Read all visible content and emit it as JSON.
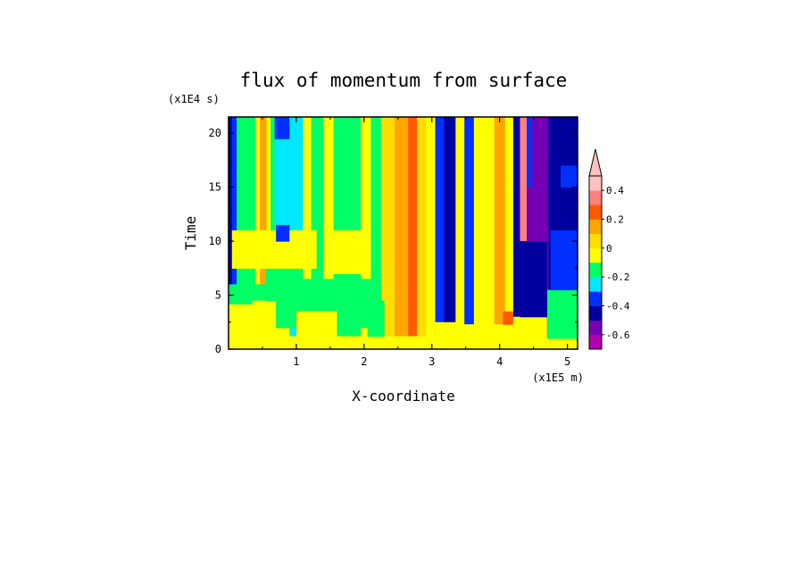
{
  "chart_data": {
    "type": "heatmap",
    "title": "flux of momentum from surface",
    "xlabel": "X-coordinate",
    "ylabel": "Time",
    "x_unit": "(x1E5 m)",
    "y_unit": "(x1E4 s)",
    "xlim": [
      0,
      5.15
    ],
    "ylim": [
      0,
      21.5
    ],
    "x_ticks": [
      "1",
      "2",
      "3",
      "4",
      "5"
    ],
    "y_ticks": [
      "0",
      "5",
      "10",
      "15",
      "20"
    ],
    "grid": false,
    "colorbar": {
      "position": "right",
      "tick_labels": [
        "-0.6",
        "-0.4",
        "-0.2",
        "0",
        "0.2",
        "0.4"
      ],
      "levels": [
        -0.6,
        -0.5,
        -0.4,
        -0.3,
        -0.2,
        -0.1,
        0,
        0.1,
        0.2,
        0.3,
        0.4,
        0.5
      ],
      "colors": [
        "#b300b3",
        "#7300b4",
        "#00009e",
        "#0030ff",
        "#00e8ff",
        "#00ff64",
        "#ffff00",
        "#ffdd00",
        "#ffa500",
        "#ff5a00",
        "#ff8080",
        "#ffc0c0"
      ],
      "extend_max": true
    },
    "columns": [
      {
        "x0": 0.0,
        "x1": 0.05,
        "value": -0.35
      },
      {
        "x0": 0.05,
        "x1": 0.12,
        "value": -0.25
      },
      {
        "x0": 0.12,
        "x1": 0.4,
        "value": -0.05
      },
      {
        "x0": 0.4,
        "x1": 0.46,
        "value": 0.05
      },
      {
        "x0": 0.46,
        "x1": 0.56,
        "value": 0.25
      },
      {
        "x0": 0.56,
        "x1": 0.62,
        "value": 0.05
      },
      {
        "x0": 0.62,
        "x1": 0.68,
        "value": -0.05
      },
      {
        "x0": 0.68,
        "x1": 0.98,
        "value": -0.15
      },
      {
        "x0": 0.98,
        "x1": 1.1,
        "value": -0.15
      },
      {
        "x0": 1.1,
        "x1": 1.22,
        "value": 0.05
      },
      {
        "x0": 1.22,
        "x1": 1.4,
        "value": -0.05
      },
      {
        "x0": 1.4,
        "x1": 1.55,
        "value": 0.05
      },
      {
        "x0": 1.55,
        "x1": 1.8,
        "value": -0.05
      },
      {
        "x0": 1.8,
        "x1": 1.95,
        "value": -0.05
      },
      {
        "x0": 1.95,
        "x1": 2.1,
        "value": 0.05
      },
      {
        "x0": 2.1,
        "x1": 2.25,
        "value": -0.05
      },
      {
        "x0": 2.25,
        "x1": 2.45,
        "value": 0.15
      },
      {
        "x0": 2.45,
        "x1": 2.65,
        "value": 0.25
      },
      {
        "x0": 2.65,
        "x1": 2.78,
        "value": 0.35
      },
      {
        "x0": 2.78,
        "x1": 2.92,
        "value": 0.15
      },
      {
        "x0": 2.92,
        "x1": 3.05,
        "value": 0.05
      },
      {
        "x0": 3.05,
        "x1": 3.18,
        "value": -0.25
      },
      {
        "x0": 3.18,
        "x1": 3.35,
        "value": -0.35
      },
      {
        "x0": 3.35,
        "x1": 3.48,
        "value": 0.05
      },
      {
        "x0": 3.48,
        "x1": 3.62,
        "value": -0.25
      },
      {
        "x0": 3.62,
        "x1": 3.76,
        "value": 0.05
      },
      {
        "x0": 3.76,
        "x1": 3.92,
        "value": 0.05
      },
      {
        "x0": 3.92,
        "x1": 4.08,
        "value": 0.25
      },
      {
        "x0": 4.08,
        "x1": 4.2,
        "value": 0.05
      },
      {
        "x0": 4.2,
        "x1": 4.3,
        "value": -0.35
      },
      {
        "x0": 4.3,
        "x1": 4.4,
        "value": 0.45
      },
      {
        "x0": 4.4,
        "x1": 4.48,
        "value": -0.25
      },
      {
        "x0": 4.48,
        "x1": 4.72,
        "value": -0.45
      },
      {
        "x0": 4.72,
        "x1": 5.15,
        "value": -0.35
      }
    ],
    "patches": [
      {
        "x0": 0.0,
        "x1": 5.15,
        "y0": 0.0,
        "y1": 1.2,
        "value": 0.05
      },
      {
        "x0": 0.0,
        "x1": 0.35,
        "y0": 0.0,
        "y1": 4.2,
        "value": 0.05
      },
      {
        "x0": 0.0,
        "x1": 0.55,
        "y0": 4.2,
        "y1": 6.0,
        "value": -0.05
      },
      {
        "x0": 0.35,
        "x1": 0.9,
        "y0": 1.2,
        "y1": 4.5,
        "value": 0.05
      },
      {
        "x0": 0.55,
        "x1": 1.1,
        "y0": 4.5,
        "y1": 8.0,
        "value": -0.05
      },
      {
        "x0": 0.7,
        "x1": 2.2,
        "y0": 2.0,
        "y1": 6.5,
        "value": -0.05
      },
      {
        "x0": 1.0,
        "x1": 1.6,
        "y0": 1.2,
        "y1": 3.5,
        "value": 0.05
      },
      {
        "x0": 0.05,
        "x1": 1.3,
        "y0": 7.5,
        "y1": 11.0,
        "value": 0.05
      },
      {
        "x0": 0.7,
        "x1": 0.9,
        "y0": 10.0,
        "y1": 11.5,
        "value": -0.25
      },
      {
        "x0": 1.4,
        "x1": 2.1,
        "y0": 7.0,
        "y1": 11.0,
        "value": 0.05
      },
      {
        "x0": 2.05,
        "x1": 2.3,
        "y0": 1.2,
        "y1": 4.5,
        "value": -0.05
      },
      {
        "x0": 3.05,
        "x1": 3.4,
        "y0": 0.0,
        "y1": 2.5,
        "value": 0.05
      },
      {
        "x0": 3.4,
        "x1": 4.3,
        "y0": 0.0,
        "y1": 2.3,
        "value": 0.05
      },
      {
        "x0": 4.05,
        "x1": 4.2,
        "y0": 2.3,
        "y1": 3.5,
        "value": 0.35
      },
      {
        "x0": 4.2,
        "x1": 4.7,
        "y0": 0.0,
        "y1": 3.0,
        "value": 0.05
      },
      {
        "x0": 4.7,
        "x1": 5.15,
        "y0": 1.0,
        "y1": 5.5,
        "value": -0.05
      },
      {
        "x0": 4.75,
        "x1": 5.15,
        "y0": 5.5,
        "y1": 11.0,
        "value": -0.25
      },
      {
        "x0": 4.3,
        "x1": 4.7,
        "y0": 3.0,
        "y1": 10.0,
        "value": -0.35
      },
      {
        "x0": 4.4,
        "x1": 4.7,
        "y0": 10.0,
        "y1": 15.0,
        "value": -0.45
      },
      {
        "x0": 4.72,
        "x1": 5.15,
        "y0": 11.5,
        "y1": 18.0,
        "value": -0.35
      },
      {
        "x0": 4.9,
        "x1": 5.15,
        "y0": 15.0,
        "y1": 17.0,
        "value": -0.25
      },
      {
        "x0": 0.68,
        "x1": 0.9,
        "y0": 19.5,
        "y1": 21.5,
        "value": -0.25
      }
    ]
  }
}
